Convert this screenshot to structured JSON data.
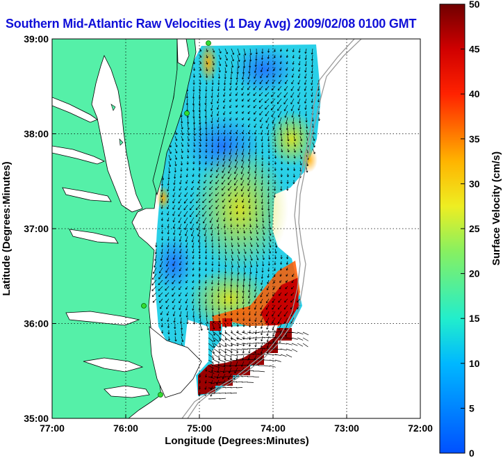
{
  "title": "Southern Mid-Atlantic Raw Velocities (1 Day Avg) 2009/02/08 0100 GMT",
  "map": {
    "xlabel": "Longitude (Degrees:Minutes)",
    "ylabel": "Latitude (Degrees:Minutes)",
    "x_ticks": [
      "77:00",
      "76:00",
      "75:00",
      "74:00",
      "73:00",
      "72:00"
    ],
    "y_ticks": [
      "39:00",
      "38:00",
      "37:00",
      "36:00",
      "35:00"
    ],
    "xlim": [
      -77,
      -72
    ],
    "ylim": [
      35,
      39
    ],
    "grid": true
  },
  "colorbar": {
    "label": "Surface Velocity (cm/s)",
    "ticks": [
      "0",
      "5",
      "10",
      "15",
      "20",
      "25",
      "30",
      "35",
      "40",
      "45",
      "50"
    ],
    "range": [
      0,
      50
    ]
  },
  "colors": {
    "land": "#55f0a8",
    "title": "#1010d8",
    "station": "#33dd33"
  }
}
